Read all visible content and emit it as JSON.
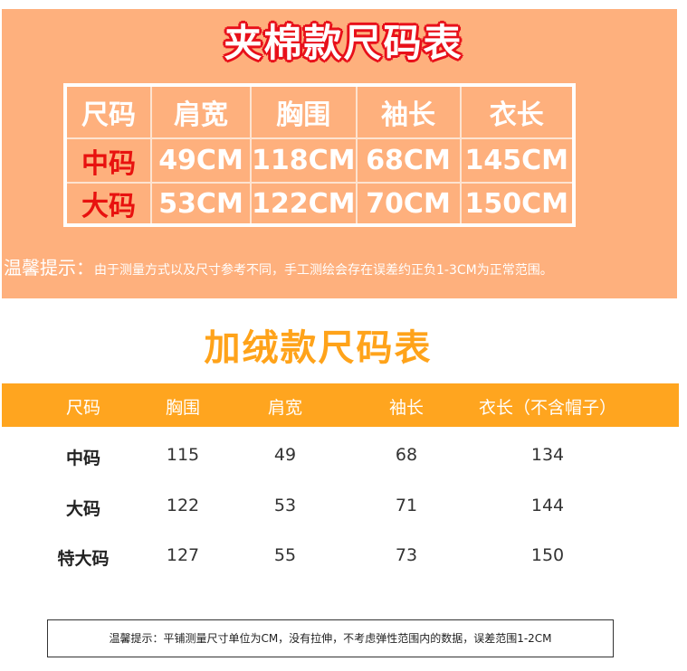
{
  "cotton": {
    "title": "夹棉款尺码表",
    "headers": [
      "尺码",
      "肩宽",
      "胸围",
      "袖长",
      "衣长"
    ],
    "rows": [
      [
        "中码",
        "49CM",
        "118CM",
        "68CM",
        "145CM"
      ],
      [
        "大码",
        "53CM",
        "122CM",
        "70CM",
        "150CM"
      ]
    ],
    "tip_label": "温馨提示：",
    "tip_text": "由于测量方式以及尺寸参考不同，手工测绘会存在误差约正负1-3CM为正常范围。"
  },
  "fleece": {
    "title": "加绒款尺码表",
    "headers": [
      "尺码",
      "胸围",
      "肩宽",
      "袖长",
      "衣长（不含帽子）"
    ],
    "rows": [
      [
        "中码",
        "115",
        "49",
        "68",
        "134"
      ],
      [
        "大码",
        "122",
        "53",
        "71",
        "144"
      ],
      [
        "特大码",
        "127",
        "55",
        "73",
        "150"
      ]
    ],
    "note": "温馨提示：平铺测量尺寸单位为CM，没有拉伸，不考虑弹性范围内的数据，误差范围1-2CM"
  },
  "colors": {
    "cotton_bg": "#FEB07D",
    "title_outline": "#E8101A",
    "size_red": "#E8120F",
    "fleece_accent": "#FFA51F"
  }
}
